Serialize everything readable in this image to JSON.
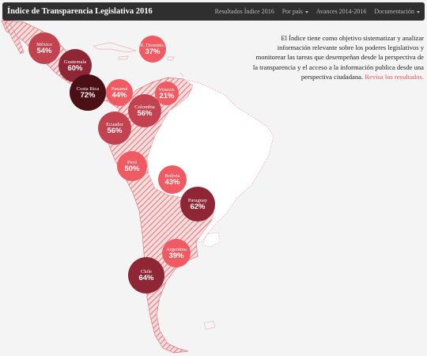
{
  "nav": {
    "brand": "Índice de Transparencia Legislativa 2016",
    "items": [
      {
        "label": "Resultados Índice 2016",
        "dropdown": false
      },
      {
        "label": "Por país",
        "dropdown": true
      },
      {
        "label": "Avances 2014-2016",
        "dropdown": false
      },
      {
        "label": "Documentación",
        "dropdown": true
      }
    ]
  },
  "intro": {
    "text": "El Índice tiene como objetivo sistematizar y analizar información relevante sobre los poderes legislativos y monitorear las tareas que desempeñan desde la perspectiva de la transparencia y el acceso a la información publica desde una perspectiva ciudadana.",
    "cta": "Revisa los resultados."
  },
  "colors": {
    "light": "#ef5a63",
    "medium": "#c2424f",
    "dark": "#8e2635",
    "darkest": "#4a1016",
    "hatch": "#e8838b"
  },
  "countries": [
    {
      "name": "México",
      "percent": "54%",
      "tone": "medium"
    },
    {
      "name": "Guatemala",
      "percent": "60%",
      "tone": "dark"
    },
    {
      "name": "Costa Rica",
      "percent": "72%",
      "tone": "darkest"
    },
    {
      "name": "Panamá",
      "percent": "44%",
      "tone": "light"
    },
    {
      "name": "R. Dominic.",
      "percent": "37%",
      "tone": "light"
    },
    {
      "name": "Venezu.",
      "percent": "21%",
      "tone": "light"
    },
    {
      "name": "Colombia",
      "percent": "56%",
      "tone": "medium"
    },
    {
      "name": "Ecuador",
      "percent": "56%",
      "tone": "medium"
    },
    {
      "name": "Perú",
      "percent": "50%",
      "tone": "medium"
    },
    {
      "name": "Bolivia",
      "percent": "43%",
      "tone": "light"
    },
    {
      "name": "Paraguay",
      "percent": "62%",
      "tone": "dark"
    },
    {
      "name": "Argentina",
      "percent": "39%",
      "tone": "light"
    },
    {
      "name": "Chile",
      "percent": "64%",
      "tone": "dark"
    }
  ]
}
